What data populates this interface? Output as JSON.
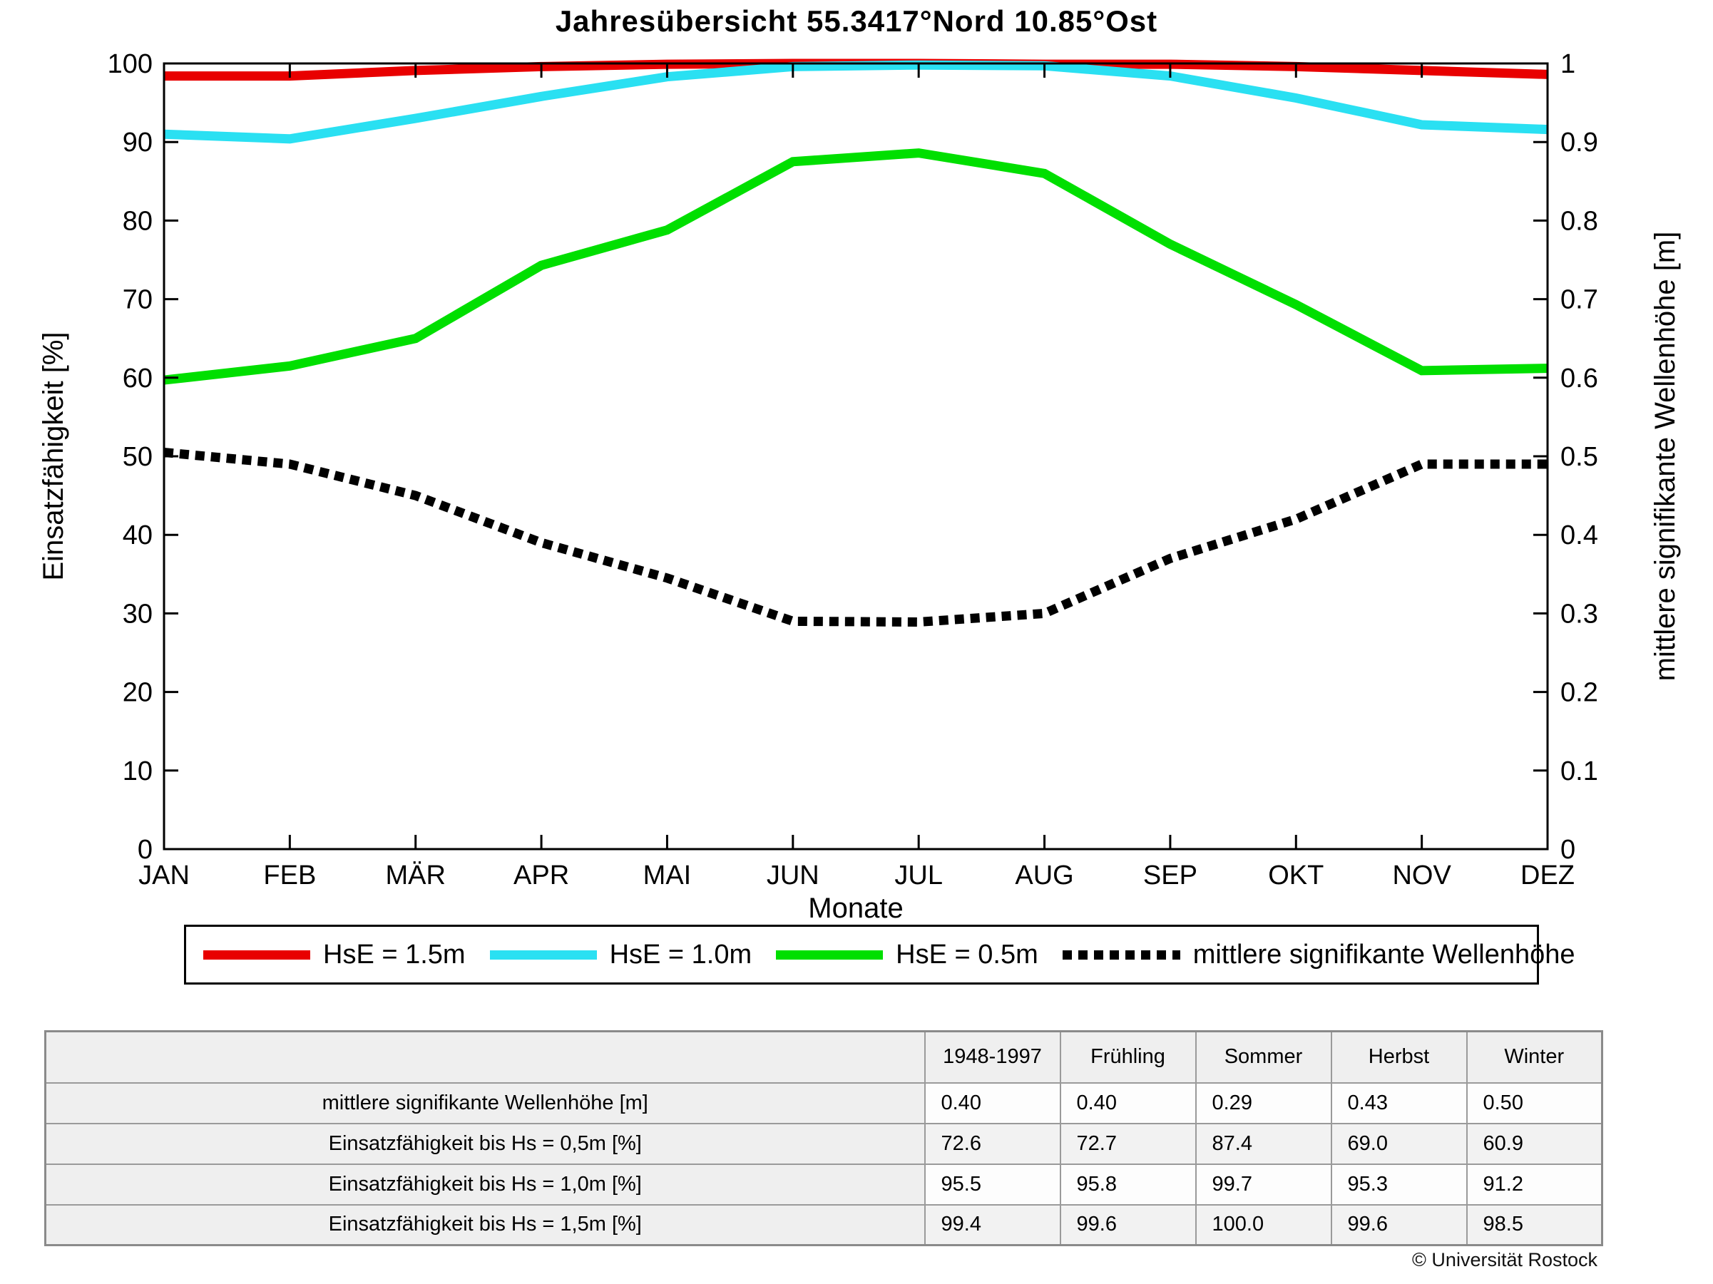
{
  "title": "Jahresübersicht  55.3417°Nord  10.85°Ost",
  "chart_data": {
    "type": "line",
    "title": "Jahresübersicht 55.3417°Nord 10.85°Ost",
    "x_categories": [
      "JAN",
      "FEB",
      "MÄR",
      "APR",
      "MAI",
      "JUN",
      "JUL",
      "AUG",
      "SEP",
      "OKT",
      "NOV",
      "DEZ"
    ],
    "xlabel": "Monate",
    "ylabel_left": "Einsatzfähigkeit [%]",
    "ylabel_right": "mittlere signifikante Wellenhöhe [m]",
    "ylim_left": [
      0,
      100
    ],
    "ytick_step_left": 10,
    "ylim_right": [
      0,
      1
    ],
    "ytick_step_right": 0.1,
    "grid": false,
    "legend_position": "below",
    "series": [
      {
        "name": "HsE = 1.5m",
        "axis": "left",
        "color": "#e80000",
        "style": "solid",
        "values": [
          98.4,
          98.4,
          99.1,
          99.6,
          99.9,
          100,
          100,
          99.9,
          99.9,
          99.6,
          99.1,
          98.6
        ]
      },
      {
        "name": "HsE = 1.0m",
        "axis": "left",
        "color": "#2ae0f2",
        "style": "solid",
        "values": [
          91.0,
          90.4,
          93.0,
          95.8,
          98.3,
          99.6,
          99.8,
          99.7,
          98.4,
          95.6,
          92.2,
          91.6
        ]
      },
      {
        "name": "HsE = 0.5m",
        "axis": "left",
        "color": "#00df00",
        "style": "solid",
        "values": [
          59.7,
          61.5,
          65.0,
          74.3,
          78.8,
          87.5,
          88.6,
          86.0,
          77.0,
          69.3,
          60.9,
          61.2
        ]
      },
      {
        "name": "mittlere signifikante Wellenhöhe",
        "axis": "right",
        "color": "#000000",
        "style": "dotted",
        "values": [
          0.505,
          0.49,
          0.45,
          0.39,
          0.345,
          0.29,
          0.289,
          0.3,
          0.37,
          0.42,
          0.49,
          0.49
        ]
      }
    ]
  },
  "table": {
    "col_headers": [
      "",
      "1948-1997",
      "Frühling",
      "Sommer",
      "Herbst",
      "Winter"
    ],
    "rows": [
      {
        "label": "mittlere signifikante Wellenhöhe [m]",
        "values": [
          "0.40",
          "0.40",
          "0.29",
          "0.43",
          "0.50"
        ]
      },
      {
        "label": "Einsatzfähigkeit bis Hs = 0,5m [%]",
        "values": [
          "72.6",
          "72.7",
          "87.4",
          "69.0",
          "60.9"
        ]
      },
      {
        "label": "Einsatzfähigkeit bis Hs = 1,0m [%]",
        "values": [
          "95.5",
          "95.8",
          "99.7",
          "95.3",
          "91.2"
        ]
      },
      {
        "label": "Einsatzfähigkeit bis Hs = 1,5m [%]",
        "values": [
          "99.4",
          "99.6",
          "100.0",
          "99.6",
          "98.5"
        ]
      }
    ]
  },
  "footer": {
    "copyright": "© Universität Rostock"
  }
}
